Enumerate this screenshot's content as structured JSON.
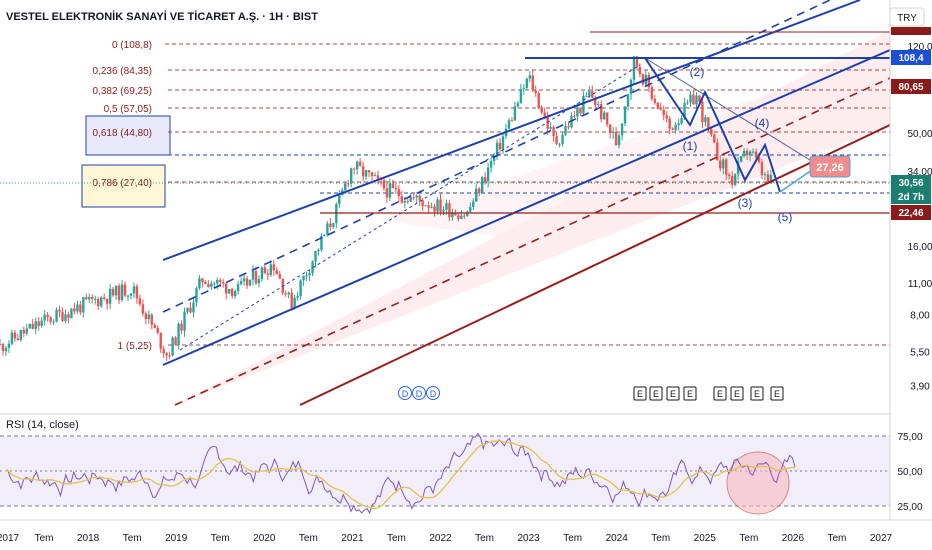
{
  "header": {
    "title": "VESTEL ELEKTRONİK SANAYİ VE TİCARET A.Ş. · 1H · BIST",
    "currency": "TRY"
  },
  "fib_levels": [
    {
      "label": "0 (108,8)",
      "value": 108.8
    },
    {
      "label": "0,236 (84,35)",
      "value": 84.35
    },
    {
      "label": "0,382 (69,25)",
      "value": 69.25
    },
    {
      "label": "0,5 (57,05)",
      "value": 57.05
    },
    {
      "label": "0,618 (44,80)",
      "value": 44.8
    },
    {
      "label": "0,786 (27,40)",
      "value": 27.4
    },
    {
      "label": "1 (5,25)",
      "value": 5.25
    }
  ],
  "price_axis": {
    "ticks": [
      "120,0",
      "50,00",
      "34,00",
      "16,00",
      "11,00",
      "8,00",
      "5,50",
      "3,90"
    ],
    "tick_values": [
      120,
      50,
      34,
      16,
      11,
      8,
      5.5,
      3.9
    ],
    "badges": [
      {
        "text": "108,4",
        "value": 108.4,
        "color": "#1d4ed8"
      },
      {
        "text": "80,65",
        "value": 80.65,
        "color": "#8b1a1a"
      },
      {
        "text": "30,56",
        "value": 30.56,
        "color": "#1a7f6e"
      },
      {
        "text": "2d 7h",
        "value": 27.6,
        "color": "#1a7f6e"
      },
      {
        "text": "22,46",
        "value": 22.46,
        "color": "#8b1a1a"
      }
    ],
    "target_label": "27,26"
  },
  "waves": [
    "(1)",
    "(2)",
    "(3)",
    "(4)",
    "(5)"
  ],
  "event_markers": {
    "dividends": [
      "D",
      "D",
      "D"
    ],
    "earnings": [
      "E",
      "E",
      "E",
      "E",
      "E",
      "E",
      "E",
      "E"
    ]
  },
  "rsi": {
    "label": "RSI (14, close)",
    "ticks": [
      "75,00",
      "50,00",
      "25,00"
    ],
    "tick_values": [
      75,
      50,
      25
    ]
  },
  "time_axis": [
    "2017",
    "Tem",
    "2018",
    "Tem",
    "2019",
    "Tem",
    "2020",
    "Tem",
    "2021",
    "Tem",
    "2022",
    "Tem",
    "2023",
    "Tem",
    "2024",
    "Tem",
    "2025",
    "Tem",
    "2026",
    "Tem",
    "2027"
  ],
  "chart_data": {
    "type": "line",
    "scale": "log",
    "series": [
      {
        "x": [
          2017.0,
          2017.5,
          2018.0,
          2018.5,
          2018.9,
          2019.3,
          2019.7,
          2020.1,
          2020.3,
          2020.8,
          2021.0,
          2021.4,
          2021.8,
          2022.3,
          2022.7,
          2023.0,
          2023.3,
          2023.7,
          2024.0,
          2024.2,
          2024.6,
          2024.9,
          2025.1,
          2025.3,
          2025.5,
          2025.7
        ],
        "y": [
          5.8,
          7.5,
          9.0,
          10.5,
          5.3,
          11.5,
          10.2,
          13.5,
          8.9,
          22.0,
          36.0,
          28.0,
          25.0,
          22.0,
          47.0,
          88.0,
          45.0,
          75.0,
          45.0,
          105.0,
          52.0,
          73.0,
          43.0,
          30.5,
          43.0,
          30.56
        ]
      }
    ],
    "ylim": [
      3.7,
      135
    ],
    "xlim": [
      2017.0,
      2027.0
    ]
  },
  "colors": {
    "channel_blue": "#1e40af",
    "fib_red": "#9b1c1c",
    "candle_up": "#26a69a",
    "candle_down": "#ef5350",
    "rsi_line": "#7e57c2",
    "rsi_ma": "#e3c34a",
    "target_box": "#f28b8b"
  }
}
